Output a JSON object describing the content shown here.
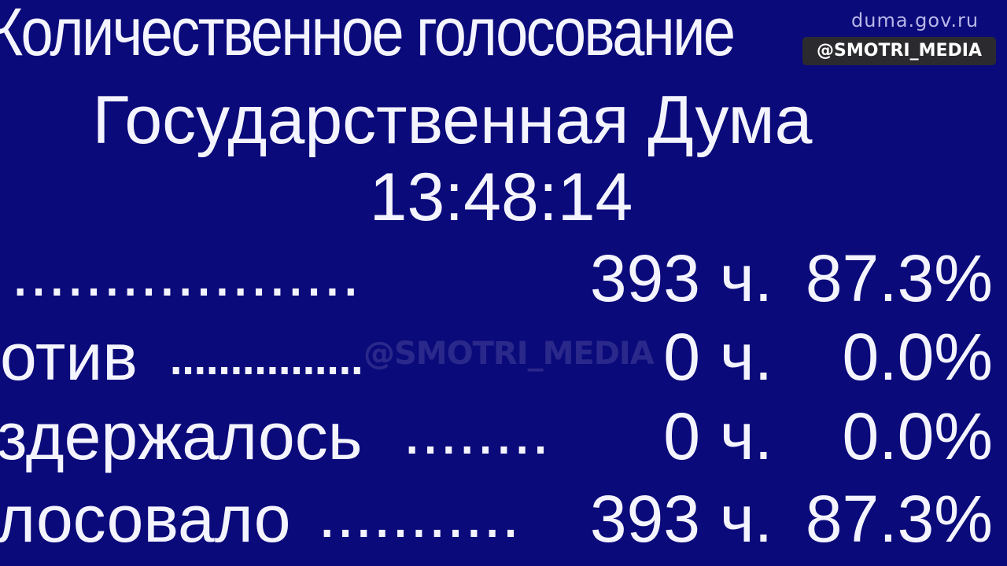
{
  "header": {
    "title": "Количественное голосование",
    "body": "Государственная Дума",
    "time": "13:48:14",
    "site": "duma.gov.ru"
  },
  "rows": [
    {
      "label": "",
      "dots": "...................",
      "count": "393",
      "unit": "ч.",
      "percent": "87.3%"
    },
    {
      "label": "отив",
      "dots": "................",
      "count": "0",
      "unit": "ч.",
      "percent": "0.0%"
    },
    {
      "label": "здержалось",
      "dots": "........",
      "count": "0",
      "unit": "ч.",
      "percent": "0.0%"
    },
    {
      "label": "лосовало",
      "dots": "...........",
      "count": "393",
      "unit": "ч.",
      "percent": "87.3%"
    }
  ],
  "watermarks": {
    "badge": "@SMOTRI_MEDIA",
    "center": "@SMOTRI_MEDIA"
  },
  "colors": {
    "background": "#0b0a7a",
    "text": "#f4f4ff"
  }
}
